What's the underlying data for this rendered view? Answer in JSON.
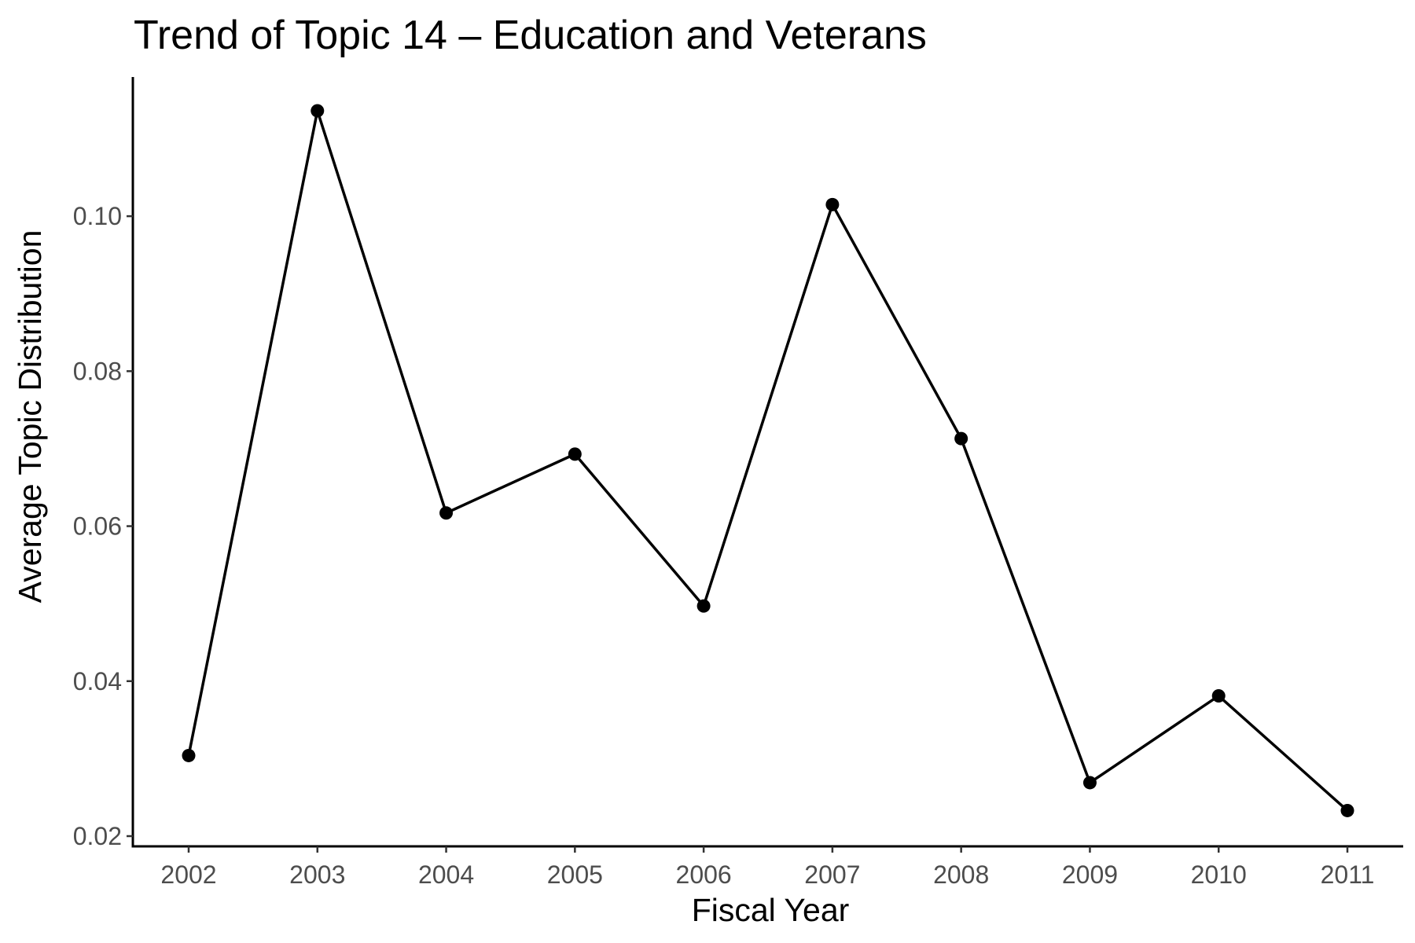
{
  "chart_data": {
    "type": "line",
    "title": "Trend of Topic 14 – Education and Veterans",
    "xlabel": "Fiscal Year",
    "ylabel": "Average Topic Distribution",
    "x": [
      "2002",
      "2003",
      "2004",
      "2005",
      "2006",
      "2007",
      "2008",
      "2009",
      "2010",
      "2011"
    ],
    "series": [
      {
        "name": "",
        "values": [
          0.0304,
          0.1136,
          0.0617,
          0.0693,
          0.0497,
          0.1015,
          0.0713,
          0.0269,
          0.0381,
          0.0233
        ]
      }
    ],
    "ylim": [
      0.019,
      0.1178
    ],
    "yticks": [
      0.02,
      0.04,
      0.06,
      0.08,
      0.1
    ],
    "ytick_labels": [
      "0.02",
      "0.04",
      "0.06",
      "0.08",
      "0.10"
    ],
    "grid": false,
    "legend": "none",
    "colors": {
      "line": "#000000",
      "point": "#000000",
      "axis": "#000000",
      "tick_label": "#4d4d4d"
    }
  }
}
